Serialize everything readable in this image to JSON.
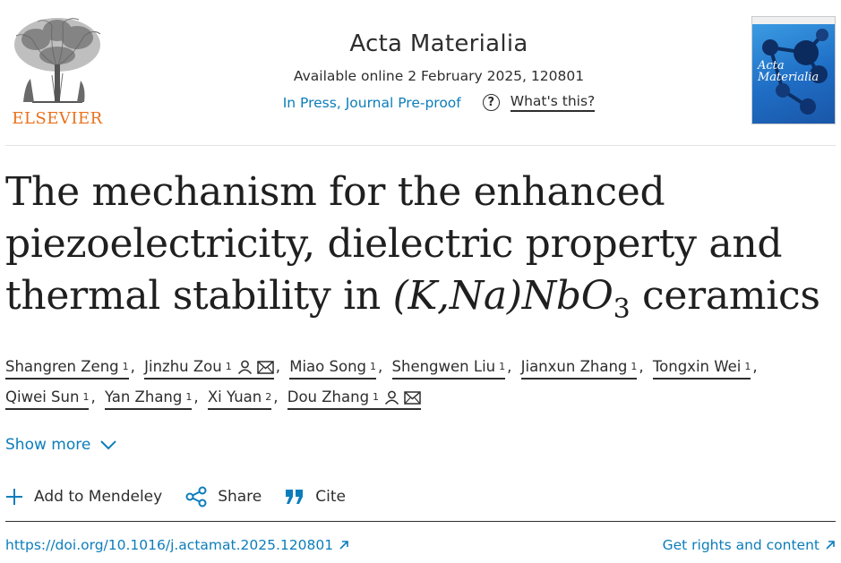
{
  "publisher": {
    "logo_text": "ELSEVIER",
    "logo_icon": "elsevier-tree-icon"
  },
  "journal": {
    "title": "Acta Materialia",
    "available": "Available online 2 February 2025, 120801",
    "status_link": "In Press, Journal Pre-proof",
    "help_link": "What's this?",
    "cover_title_line1": "Acta",
    "cover_title_line2": "Materialia"
  },
  "article": {
    "title_line1": "The mechanism for the enhanced",
    "title_line2": "piezoelectricity, dielectric property and",
    "title_line3_pre": "thermal stability in ",
    "title_formula_a": "(K,Na)",
    "title_formula_b": "NbO",
    "title_formula_sub": "3",
    "title_line3_post": " ceramics"
  },
  "authors": [
    {
      "name": "Shangren Zeng",
      "aff": "1",
      "corresponding": false
    },
    {
      "name": "Jinzhu Zou",
      "aff": "1",
      "corresponding": true
    },
    {
      "name": "Miao Song",
      "aff": "1",
      "corresponding": false
    },
    {
      "name": "Shengwen Liu",
      "aff": "1",
      "corresponding": false
    },
    {
      "name": "Jianxun Zhang",
      "aff": "1",
      "corresponding": false
    },
    {
      "name": "Tongxin Wei",
      "aff": "1",
      "corresponding": false
    },
    {
      "name": "Qiwei Sun",
      "aff": "1",
      "corresponding": false
    },
    {
      "name": "Yan Zhang",
      "aff": "1",
      "corresponding": false
    },
    {
      "name": "Xi Yuan",
      "aff": "2",
      "corresponding": false
    },
    {
      "name": "Dou Zhang",
      "aff": "1",
      "corresponding": true
    }
  ],
  "actions": {
    "show_more": "Show more",
    "add_mendeley": "Add to Mendeley",
    "share": "Share",
    "cite": "Cite"
  },
  "links": {
    "doi": "https://doi.org/10.1016/j.actamat.2025.120801",
    "rights": "Get rights and content"
  },
  "colors": {
    "link": "#0c7dbb",
    "text": "#1f1f1f",
    "elsevier_orange": "#e9711c"
  }
}
